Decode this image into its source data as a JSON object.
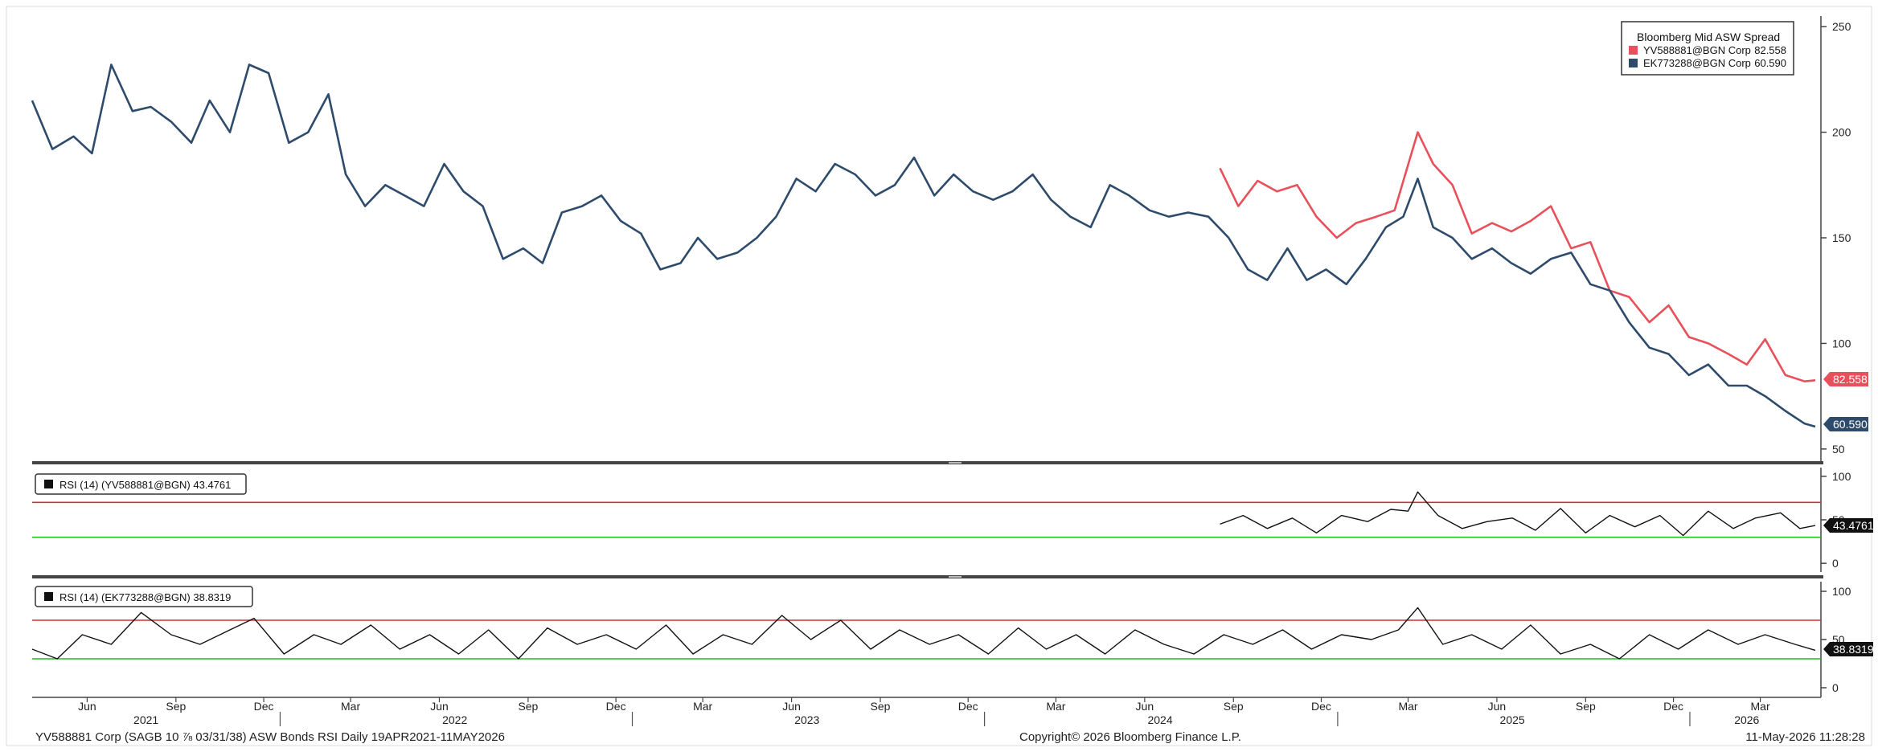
{
  "footer": {
    "left": "YV588881 Corp (SAGB 10 ⅞ 03/31/38) ASW Bonds RSI Daily 19APR2021-11MAY2026",
    "center": "Copyright© 2026 Bloomberg Finance L.P.",
    "right": "11-May-2026 11:28:28"
  },
  "x_axis": {
    "months": [
      {
        "label": "Jun",
        "date": "2021-06-15"
      },
      {
        "label": "Sep",
        "date": "2021-09-15"
      },
      {
        "label": "Dec",
        "date": "2021-12-15"
      },
      {
        "label": "Mar",
        "date": "2022-03-15"
      },
      {
        "label": "Jun",
        "date": "2022-06-15"
      },
      {
        "label": "Sep",
        "date": "2022-09-15"
      },
      {
        "label": "Dec",
        "date": "2022-12-15"
      },
      {
        "label": "Mar",
        "date": "2023-03-15"
      },
      {
        "label": "Jun",
        "date": "2023-06-15"
      },
      {
        "label": "Sep",
        "date": "2023-09-15"
      },
      {
        "label": "Dec",
        "date": "2023-12-15"
      },
      {
        "label": "Mar",
        "date": "2024-03-15"
      },
      {
        "label": "Jun",
        "date": "2024-06-15"
      },
      {
        "label": "Sep",
        "date": "2024-09-15"
      },
      {
        "label": "Dec",
        "date": "2024-12-15"
      },
      {
        "label": "Mar",
        "date": "2025-03-15"
      },
      {
        "label": "Jun",
        "date": "2025-06-15"
      },
      {
        "label": "Sep",
        "date": "2025-09-15"
      },
      {
        "label": "Dec",
        "date": "2025-12-15"
      },
      {
        "label": "Mar",
        "date": "2026-03-15"
      }
    ],
    "years": [
      {
        "label": "2021",
        "date": "2021-08-15"
      },
      {
        "label": "2022",
        "date": "2022-07-01"
      },
      {
        "label": "2023",
        "date": "2023-07-01"
      },
      {
        "label": "2024",
        "date": "2024-07-01"
      },
      {
        "label": "2025",
        "date": "2025-07-01"
      },
      {
        "label": "2026",
        "date": "2026-03-01"
      }
    ],
    "year_separators": [
      "2022-01-01",
      "2023-01-01",
      "2024-01-01",
      "2025-01-01",
      "2026-01-01"
    ]
  },
  "chart_data": [
    {
      "type": "line",
      "title": "",
      "xlabel": "",
      "ylabel": "",
      "xlim": [
        "2021-04-19",
        "2026-05-11"
      ],
      "ylim": [
        45,
        255
      ],
      "yticks": [
        50,
        100,
        150,
        200,
        250
      ],
      "grid": false,
      "legend": {
        "title": "Bloomberg Mid ASW Spread",
        "placement": "top-right",
        "entries": [
          {
            "name": "YV588881@BGN Corp",
            "value": "82.558",
            "color": "#e8505b"
          },
          {
            "name": "EK773288@BGN Corp",
            "value": "60.590",
            "color": "#2e4b6b"
          }
        ]
      },
      "last_value_labels": [
        "82.558",
        "60.590"
      ],
      "series": [
        {
          "name": "YV588881@BGN Corp",
          "color": "#e8505b",
          "x": [
            "2024-09-01",
            "2024-09-20",
            "2024-10-10",
            "2024-10-30",
            "2024-11-20",
            "2024-12-10",
            "2024-12-31",
            "2025-01-20",
            "2025-02-10",
            "2025-03-01",
            "2025-03-25",
            "2025-04-10",
            "2025-04-30",
            "2025-05-20",
            "2025-06-10",
            "2025-06-30",
            "2025-07-20",
            "2025-08-10",
            "2025-08-31",
            "2025-09-20",
            "2025-10-10",
            "2025-10-30",
            "2025-11-20",
            "2025-12-10",
            "2025-12-31",
            "2026-01-20",
            "2026-02-10",
            "2026-03-01",
            "2026-03-20",
            "2026-04-10",
            "2026-04-30",
            "2026-05-11"
          ],
          "y": [
            183,
            165,
            177,
            172,
            175,
            160,
            150,
            157,
            160,
            163,
            200,
            185,
            175,
            152,
            157,
            153,
            158,
            165,
            145,
            148,
            125,
            122,
            110,
            118,
            103,
            100,
            95,
            90,
            102,
            85,
            82,
            82.558
          ]
        },
        {
          "name": "EK773288@BGN Corp",
          "color": "#2e4b6b",
          "x": [
            "2021-04-19",
            "2021-05-10",
            "2021-06-01",
            "2021-06-20",
            "2021-07-10",
            "2021-08-01",
            "2021-08-20",
            "2021-09-10",
            "2021-10-01",
            "2021-10-20",
            "2021-11-10",
            "2021-11-30",
            "2021-12-20",
            "2022-01-10",
            "2022-01-30",
            "2022-02-20",
            "2022-03-10",
            "2022-03-30",
            "2022-04-20",
            "2022-05-10",
            "2022-05-30",
            "2022-06-20",
            "2022-07-10",
            "2022-07-30",
            "2022-08-20",
            "2022-09-10",
            "2022-09-30",
            "2022-10-20",
            "2022-11-10",
            "2022-11-30",
            "2022-12-20",
            "2023-01-10",
            "2023-01-30",
            "2023-02-20",
            "2023-03-10",
            "2023-03-30",
            "2023-04-20",
            "2023-05-10",
            "2023-05-30",
            "2023-06-20",
            "2023-07-10",
            "2023-07-30",
            "2023-08-20",
            "2023-09-10",
            "2023-09-30",
            "2023-10-20",
            "2023-11-10",
            "2023-11-30",
            "2023-12-20",
            "2024-01-10",
            "2024-01-30",
            "2024-02-20",
            "2024-03-10",
            "2024-03-30",
            "2024-04-20",
            "2024-05-10",
            "2024-05-30",
            "2024-06-20",
            "2024-07-10",
            "2024-07-30",
            "2024-08-20",
            "2024-09-10",
            "2024-09-30",
            "2024-10-20",
            "2024-11-10",
            "2024-11-30",
            "2024-12-20",
            "2025-01-10",
            "2025-01-30",
            "2025-02-20",
            "2025-03-10",
            "2025-03-25",
            "2025-04-10",
            "2025-04-30",
            "2025-05-20",
            "2025-06-10",
            "2025-06-30",
            "2025-07-20",
            "2025-08-10",
            "2025-08-31",
            "2025-09-20",
            "2025-10-10",
            "2025-10-30",
            "2025-11-20",
            "2025-12-10",
            "2025-12-31",
            "2026-01-20",
            "2026-02-10",
            "2026-03-01",
            "2026-03-20",
            "2026-04-10",
            "2026-04-30",
            "2026-05-11"
          ],
          "y": [
            215,
            192,
            198,
            190,
            232,
            210,
            212,
            205,
            195,
            215,
            200,
            232,
            228,
            195,
            200,
            218,
            180,
            165,
            175,
            170,
            165,
            185,
            172,
            165,
            140,
            145,
            138,
            162,
            165,
            170,
            158,
            152,
            135,
            138,
            150,
            140,
            143,
            150,
            160,
            178,
            172,
            185,
            180,
            170,
            175,
            188,
            170,
            180,
            172,
            168,
            172,
            180,
            168,
            160,
            155,
            175,
            170,
            163,
            160,
            162,
            160,
            150,
            135,
            130,
            145,
            130,
            135,
            128,
            140,
            155,
            160,
            178,
            155,
            150,
            140,
            145,
            138,
            133,
            140,
            143,
            128,
            125,
            110,
            98,
            95,
            85,
            90,
            80,
            80,
            75,
            68,
            62,
            60.59
          ]
        }
      ]
    },
    {
      "type": "line",
      "title": "RSI (14) (YV588881@BGN) 43.4761",
      "xlim": [
        "2021-04-19",
        "2026-05-11"
      ],
      "ylim": [
        -10,
        110
      ],
      "yticks": [
        0,
        50,
        100
      ],
      "reference_lines": [
        {
          "value": 70,
          "color": "#d03030"
        },
        {
          "value": 30,
          "color": "#22bb22"
        }
      ],
      "last_value_label": "43.4761",
      "series": [
        {
          "name": "RSI (14) (YV588881@BGN)",
          "color": "#111111",
          "x": [
            "2024-09-01",
            "2024-09-25",
            "2024-10-20",
            "2024-11-15",
            "2024-12-10",
            "2025-01-05",
            "2025-02-01",
            "2025-02-25",
            "2025-03-15",
            "2025-03-25",
            "2025-04-15",
            "2025-05-10",
            "2025-06-05",
            "2025-07-01",
            "2025-07-25",
            "2025-08-20",
            "2025-09-15",
            "2025-10-10",
            "2025-11-05",
            "2025-12-01",
            "2025-12-25",
            "2026-01-20",
            "2026-02-15",
            "2026-03-10",
            "2026-04-05",
            "2026-04-25",
            "2026-05-11"
          ],
          "y": [
            45,
            55,
            40,
            52,
            35,
            55,
            48,
            62,
            60,
            82,
            55,
            40,
            48,
            52,
            38,
            63,
            35,
            55,
            42,
            55,
            32,
            60,
            40,
            52,
            58,
            40,
            43.4761
          ]
        }
      ]
    },
    {
      "type": "line",
      "title": "RSI (14) (EK773288@BGN) 38.8319",
      "xlim": [
        "2021-04-19",
        "2026-05-11"
      ],
      "ylim": [
        -10,
        110
      ],
      "yticks": [
        0,
        50,
        100
      ],
      "reference_lines": [
        {
          "value": 70,
          "color": "#d03030"
        },
        {
          "value": 30,
          "color": "#22bb22"
        }
      ],
      "last_value_label": "38.8319",
      "series": [
        {
          "name": "RSI (14) (EK773288@BGN)",
          "color": "#111111",
          "x": [
            "2021-04-19",
            "2021-05-15",
            "2021-06-10",
            "2021-07-10",
            "2021-08-10",
            "2021-09-10",
            "2021-10-10",
            "2021-11-10",
            "2021-12-05",
            "2022-01-05",
            "2022-02-05",
            "2022-03-05",
            "2022-04-05",
            "2022-05-05",
            "2022-06-05",
            "2022-07-05",
            "2022-08-05",
            "2022-09-05",
            "2022-10-05",
            "2022-11-05",
            "2022-12-05",
            "2023-01-05",
            "2023-02-05",
            "2023-03-05",
            "2023-04-05",
            "2023-05-05",
            "2023-06-05",
            "2023-07-05",
            "2023-08-05",
            "2023-09-05",
            "2023-10-05",
            "2023-11-05",
            "2023-12-05",
            "2024-01-05",
            "2024-02-05",
            "2024-03-05",
            "2024-04-05",
            "2024-05-05",
            "2024-06-05",
            "2024-07-05",
            "2024-08-05",
            "2024-09-05",
            "2024-10-05",
            "2024-11-05",
            "2024-12-05",
            "2025-01-05",
            "2025-02-05",
            "2025-03-05",
            "2025-03-25",
            "2025-04-20",
            "2025-05-20",
            "2025-06-20",
            "2025-07-20",
            "2025-08-20",
            "2025-09-20",
            "2025-10-20",
            "2025-11-20",
            "2025-12-20",
            "2026-01-20",
            "2026-02-20",
            "2026-03-20",
            "2026-04-20",
            "2026-05-11"
          ],
          "y": [
            40,
            30,
            55,
            45,
            78,
            55,
            45,
            60,
            72,
            35,
            55,
            45,
            65,
            40,
            55,
            35,
            60,
            30,
            62,
            45,
            55,
            40,
            65,
            35,
            55,
            45,
            75,
            50,
            70,
            40,
            60,
            45,
            55,
            35,
            62,
            40,
            55,
            35,
            60,
            45,
            35,
            55,
            45,
            60,
            40,
            55,
            50,
            60,
            83,
            45,
            55,
            40,
            65,
            35,
            45,
            30,
            55,
            40,
            60,
            45,
            55,
            45,
            38.8319
          ]
        }
      ]
    }
  ]
}
